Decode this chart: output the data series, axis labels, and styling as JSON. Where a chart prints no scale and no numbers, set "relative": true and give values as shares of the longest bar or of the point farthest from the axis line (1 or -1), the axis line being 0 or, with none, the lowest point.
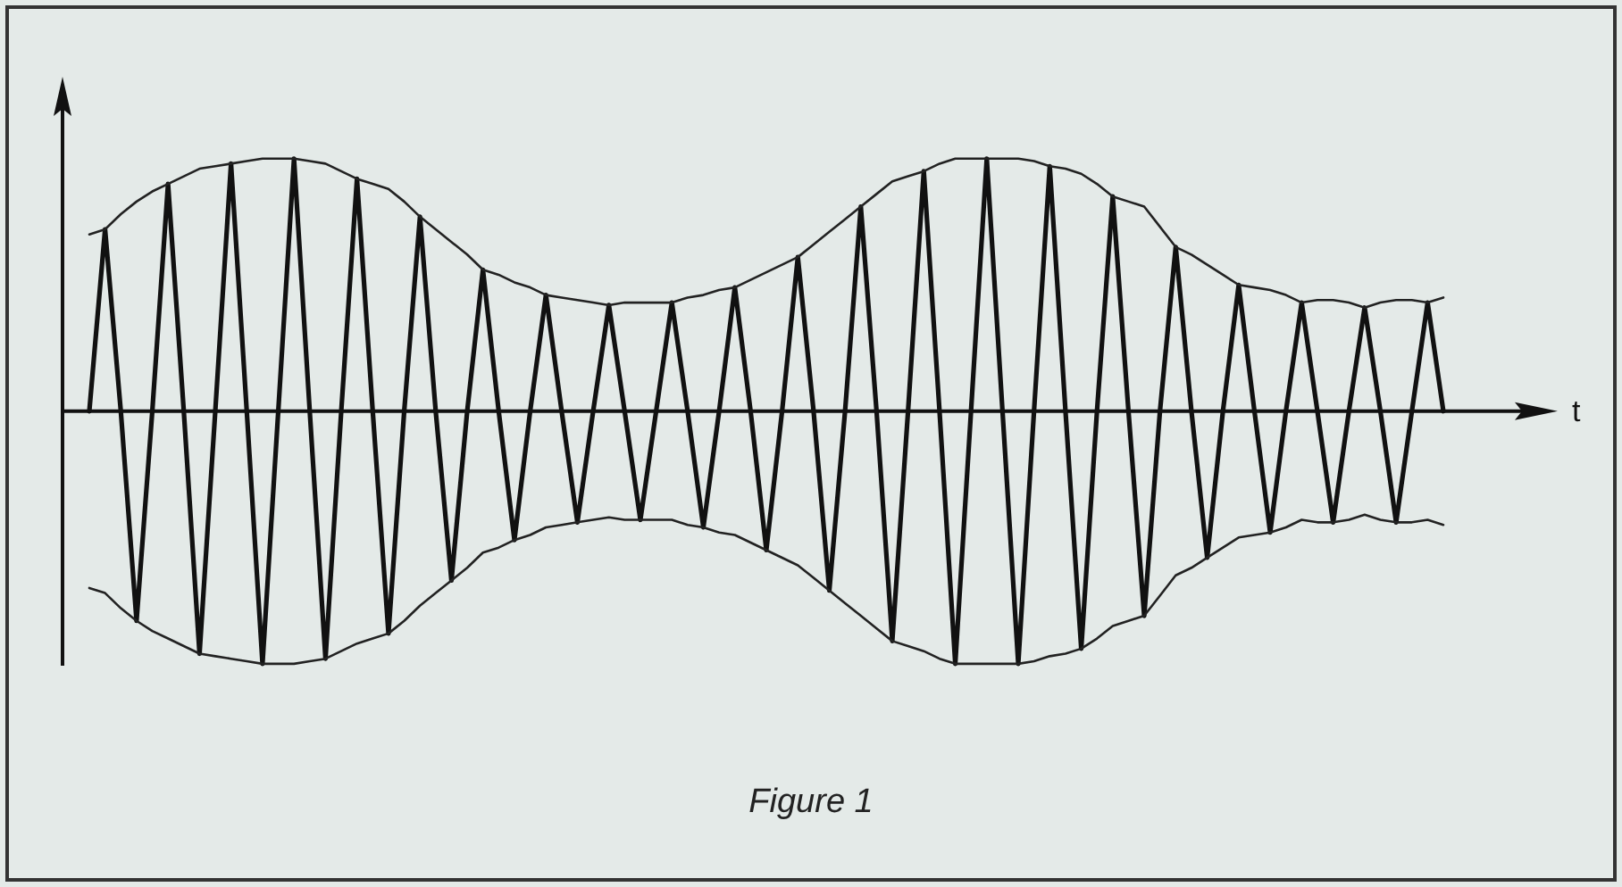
{
  "chart_data": {
    "type": "line",
    "relative": true,
    "xlabel": "t",
    "grid": false,
    "marker": "none",
    "line_style": "solid",
    "annotations": [
      "Figure 1"
    ],
    "categories": [
      null,
      null,
      null,
      null,
      null,
      null,
      null,
      null,
      null,
      null,
      null,
      null,
      null,
      null,
      null,
      null,
      null,
      null,
      null,
      null,
      null,
      null,
      null,
      null,
      null,
      null,
      null,
      null,
      null,
      null,
      null,
      null,
      null,
      null,
      null,
      null,
      null,
      null,
      null,
      null,
      null,
      null,
      null,
      null,
      null,
      null,
      null,
      null,
      null,
      null,
      null,
      null,
      null,
      null,
      null,
      null,
      null,
      null,
      null,
      null,
      null,
      null,
      null,
      null,
      null,
      null,
      null,
      null,
      null,
      null,
      null,
      null,
      null,
      null,
      null,
      null,
      null,
      null,
      null,
      null,
      null,
      null,
      null,
      null,
      null,
      null,
      null
    ],
    "series": [
      {
        "color": "#111111",
        "values": [
          0,
          0.72,
          0,
          -0.83,
          0,
          0.9,
          0,
          -0.96,
          0,
          0.98,
          0,
          -1,
          0,
          1,
          0,
          -0.98,
          0,
          0.92,
          0,
          -0.88,
          0,
          0.77,
          0,
          -0.67,
          0,
          0.56,
          0,
          -0.51,
          0,
          0.46,
          0,
          -0.44,
          0,
          0.42,
          0,
          -0.43,
          0,
          0.43,
          0,
          -0.46,
          0,
          0.49,
          0,
          -0.55,
          0,
          0.61,
          0,
          -0.71,
          0,
          0.81,
          0,
          -0.91,
          0,
          0.95,
          0,
          -1,
          0,
          1,
          0,
          -1,
          0,
          0.97,
          0,
          -0.94,
          0,
          0.85,
          0,
          -0.81,
          0,
          0.65,
          0,
          -0.58,
          0,
          0.5,
          0,
          -0.48,
          0,
          0.43,
          0,
          -0.44,
          0,
          0.41,
          0,
          -0.44,
          0,
          0.43,
          0
        ]
      },
      {
        "color": "#222222",
        "values": [
          0.7,
          0.72,
          0.78,
          0.83,
          0.87,
          0.9,
          0.93,
          0.96,
          0.97,
          0.98,
          0.99,
          1,
          1,
          1,
          0.99,
          0.98,
          0.95,
          0.92,
          0.9,
          0.88,
          0.83,
          0.77,
          0.72,
          0.67,
          0.62,
          0.56,
          0.54,
          0.51,
          0.49,
          0.46,
          0.45,
          0.44,
          0.43,
          0.42,
          0.43,
          0.43,
          0.43,
          0.43,
          0.45,
          0.46,
          0.48,
          0.49,
          0.52,
          0.55,
          0.58,
          0.61,
          0.66,
          0.71,
          0.76,
          0.81,
          0.86,
          0.91,
          0.93,
          0.95,
          0.98,
          1,
          1,
          1,
          1,
          1,
          0.99,
          0.97,
          0.96,
          0.94,
          0.9,
          0.85,
          0.83,
          0.81,
          0.73,
          0.65,
          0.62,
          0.58,
          0.54,
          0.5,
          0.49,
          0.48,
          0.46,
          0.43,
          0.44,
          0.44,
          0.43,
          0.41,
          0.43,
          0.44,
          0.44,
          0.43,
          0.45
        ]
      },
      {
        "color": "#222222",
        "values": [
          -0.7,
          -0.72,
          -0.78,
          -0.83,
          -0.87,
          -0.9,
          -0.93,
          -0.96,
          -0.97,
          -0.98,
          -0.99,
          -1,
          -1,
          -1,
          -0.99,
          -0.98,
          -0.95,
          -0.92,
          -0.9,
          -0.88,
          -0.83,
          -0.77,
          -0.72,
          -0.67,
          -0.62,
          -0.56,
          -0.54,
          -0.51,
          -0.49,
          -0.46,
          -0.45,
          -0.44,
          -0.43,
          -0.42,
          -0.43,
          -0.43,
          -0.43,
          -0.43,
          -0.45,
          -0.46,
          -0.48,
          -0.49,
          -0.52,
          -0.55,
          -0.58,
          -0.61,
          -0.66,
          -0.71,
          -0.76,
          -0.81,
          -0.86,
          -0.91,
          -0.93,
          -0.95,
          -0.98,
          -1,
          -1,
          -1,
          -1,
          -1,
          -0.99,
          -0.97,
          -0.96,
          -0.94,
          -0.9,
          -0.85,
          -0.83,
          -0.81,
          -0.73,
          -0.65,
          -0.62,
          -0.58,
          -0.54,
          -0.5,
          -0.49,
          -0.48,
          -0.46,
          -0.43,
          -0.44,
          -0.44,
          -0.43,
          -0.41,
          -0.43,
          -0.44,
          -0.44,
          -0.43,
          -0.45
        ]
      }
    ]
  }
}
